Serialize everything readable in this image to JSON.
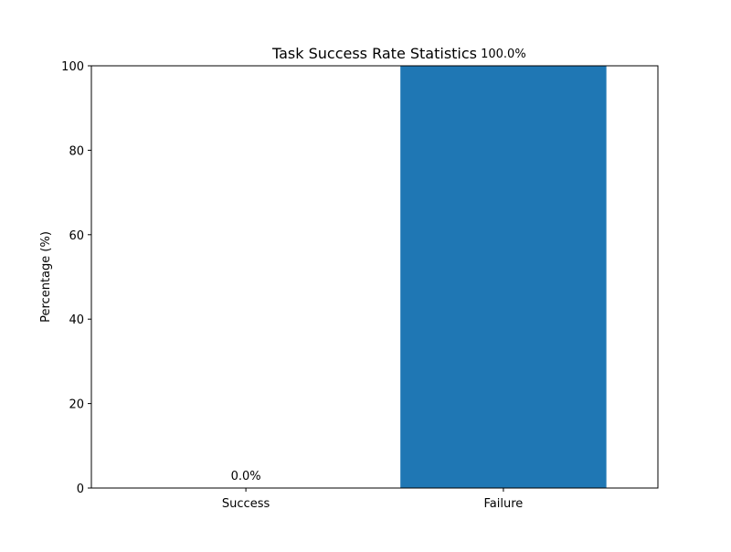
{
  "chart_data": {
    "type": "bar",
    "title": "Task Success Rate Statistics",
    "xlabel": "",
    "ylabel": "Percentage (%)",
    "categories": [
      "Success",
      "Failure"
    ],
    "values": [
      0.0,
      100.0
    ],
    "value_labels": [
      "0.0%",
      "100.0%"
    ],
    "ylim": [
      0,
      100
    ],
    "yticks": [
      0,
      20,
      40,
      60,
      80,
      100
    ],
    "bar_color": "#1f77b4",
    "grid": false,
    "legend": "none"
  }
}
